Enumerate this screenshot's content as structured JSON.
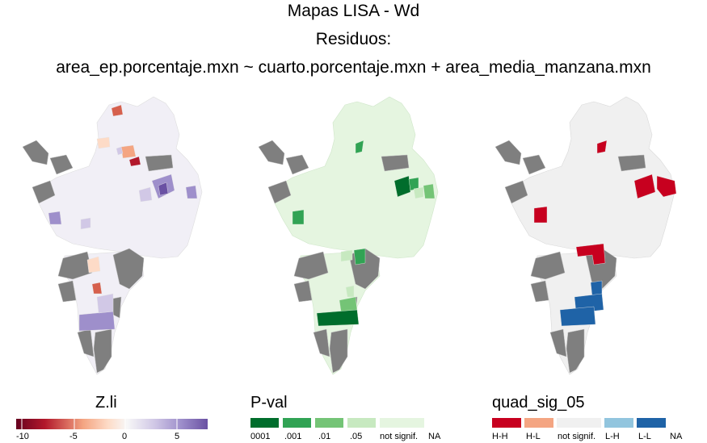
{
  "title": {
    "line1": "Mapas LISA - Wd",
    "line2": "Residuos:",
    "line3": "area_ep.porcentaje.mxn ~ cuarto.porcentaje.mxn + area_media_manzana.mxn"
  },
  "legend_z": {
    "title": "Z.li",
    "ticks": [
      "-10",
      "-5",
      "0",
      "5"
    ],
    "colors": [
      "#67001f",
      "#b2182b",
      "#d6604d",
      "#f4a582",
      "#fddbc7",
      "#f7f7f7",
      "#d1c8e6",
      "#9e8fcb",
      "#6a51a3"
    ]
  },
  "legend_p": {
    "title": "P-val",
    "labels": [
      "0001",
      ".001",
      ".01",
      ".05",
      "not signif.",
      "NA"
    ],
    "colors": [
      "#006d2c",
      "#31a354",
      "#74c476",
      "#c7e9c0",
      "#e5f5e0"
    ]
  },
  "legend_q": {
    "title": "quad_sig_05",
    "labels": [
      "H-H",
      "H-L",
      "not signif.",
      "L-H",
      "L-L",
      "NA"
    ],
    "colors": [
      "#c7001f",
      "#f4a582",
      "#f0f0f0",
      "#92c5de",
      "#1f63a7",
      "#ffffff"
    ]
  },
  "map_colors": {
    "na": "#7f7f7f",
    "outline": "#d9d9d9"
  }
}
